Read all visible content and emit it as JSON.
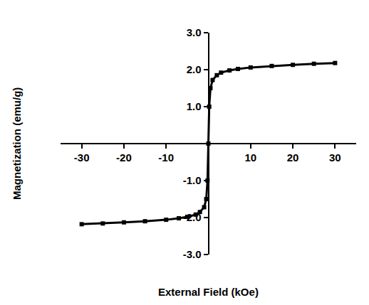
{
  "chart_data": {
    "type": "line",
    "x_label": "External Field (kOe)",
    "y_label": "Magnetization (emu/g)",
    "x": [
      -30,
      -25,
      -20,
      -15,
      -10,
      -7,
      -5,
      -3,
      -2,
      -1,
      -0.5,
      -0.2,
      0,
      0.2,
      0.5,
      1,
      2,
      3,
      5,
      7,
      10,
      15,
      20,
      25,
      30
    ],
    "values": [
      -2.18,
      -2.16,
      -2.13,
      -2.1,
      -2.06,
      -2.02,
      -1.98,
      -1.92,
      -1.85,
      -1.72,
      -1.5,
      -1.0,
      0,
      1.0,
      1.5,
      1.72,
      1.85,
      1.92,
      1.98,
      2.02,
      2.06,
      2.1,
      2.13,
      2.16,
      2.18
    ],
    "color": "#000000",
    "marker": "square",
    "line_style": "solid",
    "xlim": [
      -35,
      35
    ],
    "ylim": [
      -3,
      3
    ],
    "xticks": [
      -30,
      -20,
      -10,
      10,
      20,
      30
    ],
    "yticks": [
      {
        "value": -3,
        "label": "-3.0"
      },
      {
        "value": -2,
        "label": "-2.0"
      },
      {
        "value": -1,
        "label": "-1.0"
      },
      {
        "value": 1,
        "label": "1.0"
      },
      {
        "value": 2,
        "label": "2.0"
      },
      {
        "value": 3,
        "label": "3.0"
      }
    ],
    "grid": false
  }
}
